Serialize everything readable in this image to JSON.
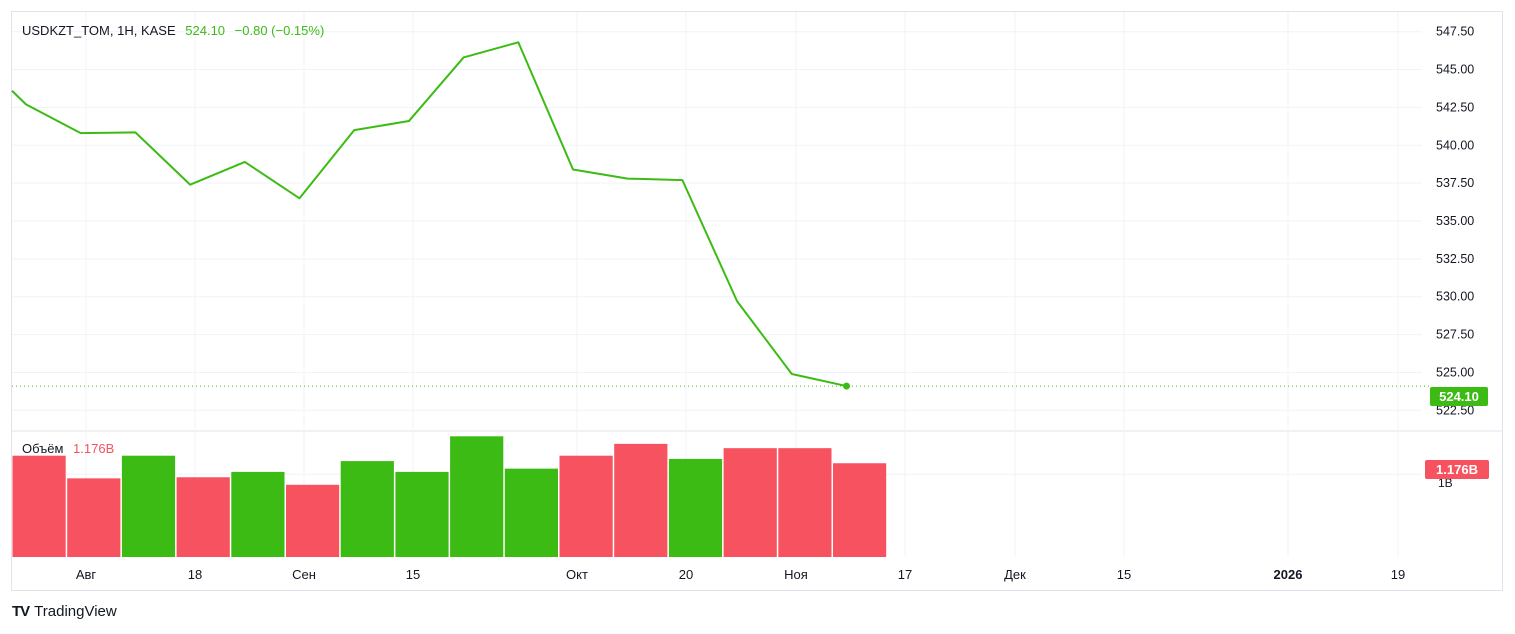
{
  "header": {
    "symbol": "USDKZT_TOM, 1H, KASE",
    "last": "524.10",
    "change": "−0.80 (−0.15%)"
  },
  "volume": {
    "label": "Объём",
    "value": "1.176B",
    "axis_tick": "1B"
  },
  "price_badge": "524.10",
  "brand": "TradingView",
  "colors": {
    "up": "#3cbb14",
    "down": "#f7525f",
    "grid": "#f0f3fa"
  },
  "chart_data": [
    {
      "type": "line",
      "title": "USDKZT_TOM, 1H, KASE",
      "series": [
        {
          "values": [
            543.6,
            542.7,
            540.8,
            540.85,
            537.4,
            538.9,
            536.5,
            541.0,
            541.6,
            545.8,
            546.8,
            538.4,
            537.8,
            537.7,
            529.7,
            524.9,
            524.1
          ]
        }
      ],
      "last_value": 524.1,
      "ylim": [
        521.2,
        548.8
      ],
      "yticks": [
        "522.50",
        "525.00",
        "527.50",
        "530.00",
        "532.50",
        "535.00",
        "537.50",
        "540.00",
        "542.50",
        "545.00",
        "547.50"
      ],
      "xticks": [
        "Авг",
        "18",
        "Сен",
        "15",
        "Окт",
        "20",
        "Ноя",
        "17",
        "Дек",
        "15",
        "2026",
        "19"
      ],
      "xticks_bold": [
        "2026"
      ],
      "grid": true
    },
    {
      "type": "bar",
      "title": "Объём",
      "values": [
        0.94,
        0.73,
        0.94,
        0.74,
        0.79,
        0.67,
        0.89,
        0.79,
        1.12,
        0.82,
        0.94,
        1.05,
        0.91,
        1.01,
        1.01,
        0.87
      ],
      "colors": [
        "down",
        "down",
        "up",
        "down",
        "up",
        "down",
        "up",
        "up",
        "up",
        "up",
        "down",
        "down",
        "up",
        "down",
        "down",
        "down"
      ],
      "last_value": 1.176,
      "ylim": [
        0,
        1.16
      ]
    }
  ]
}
